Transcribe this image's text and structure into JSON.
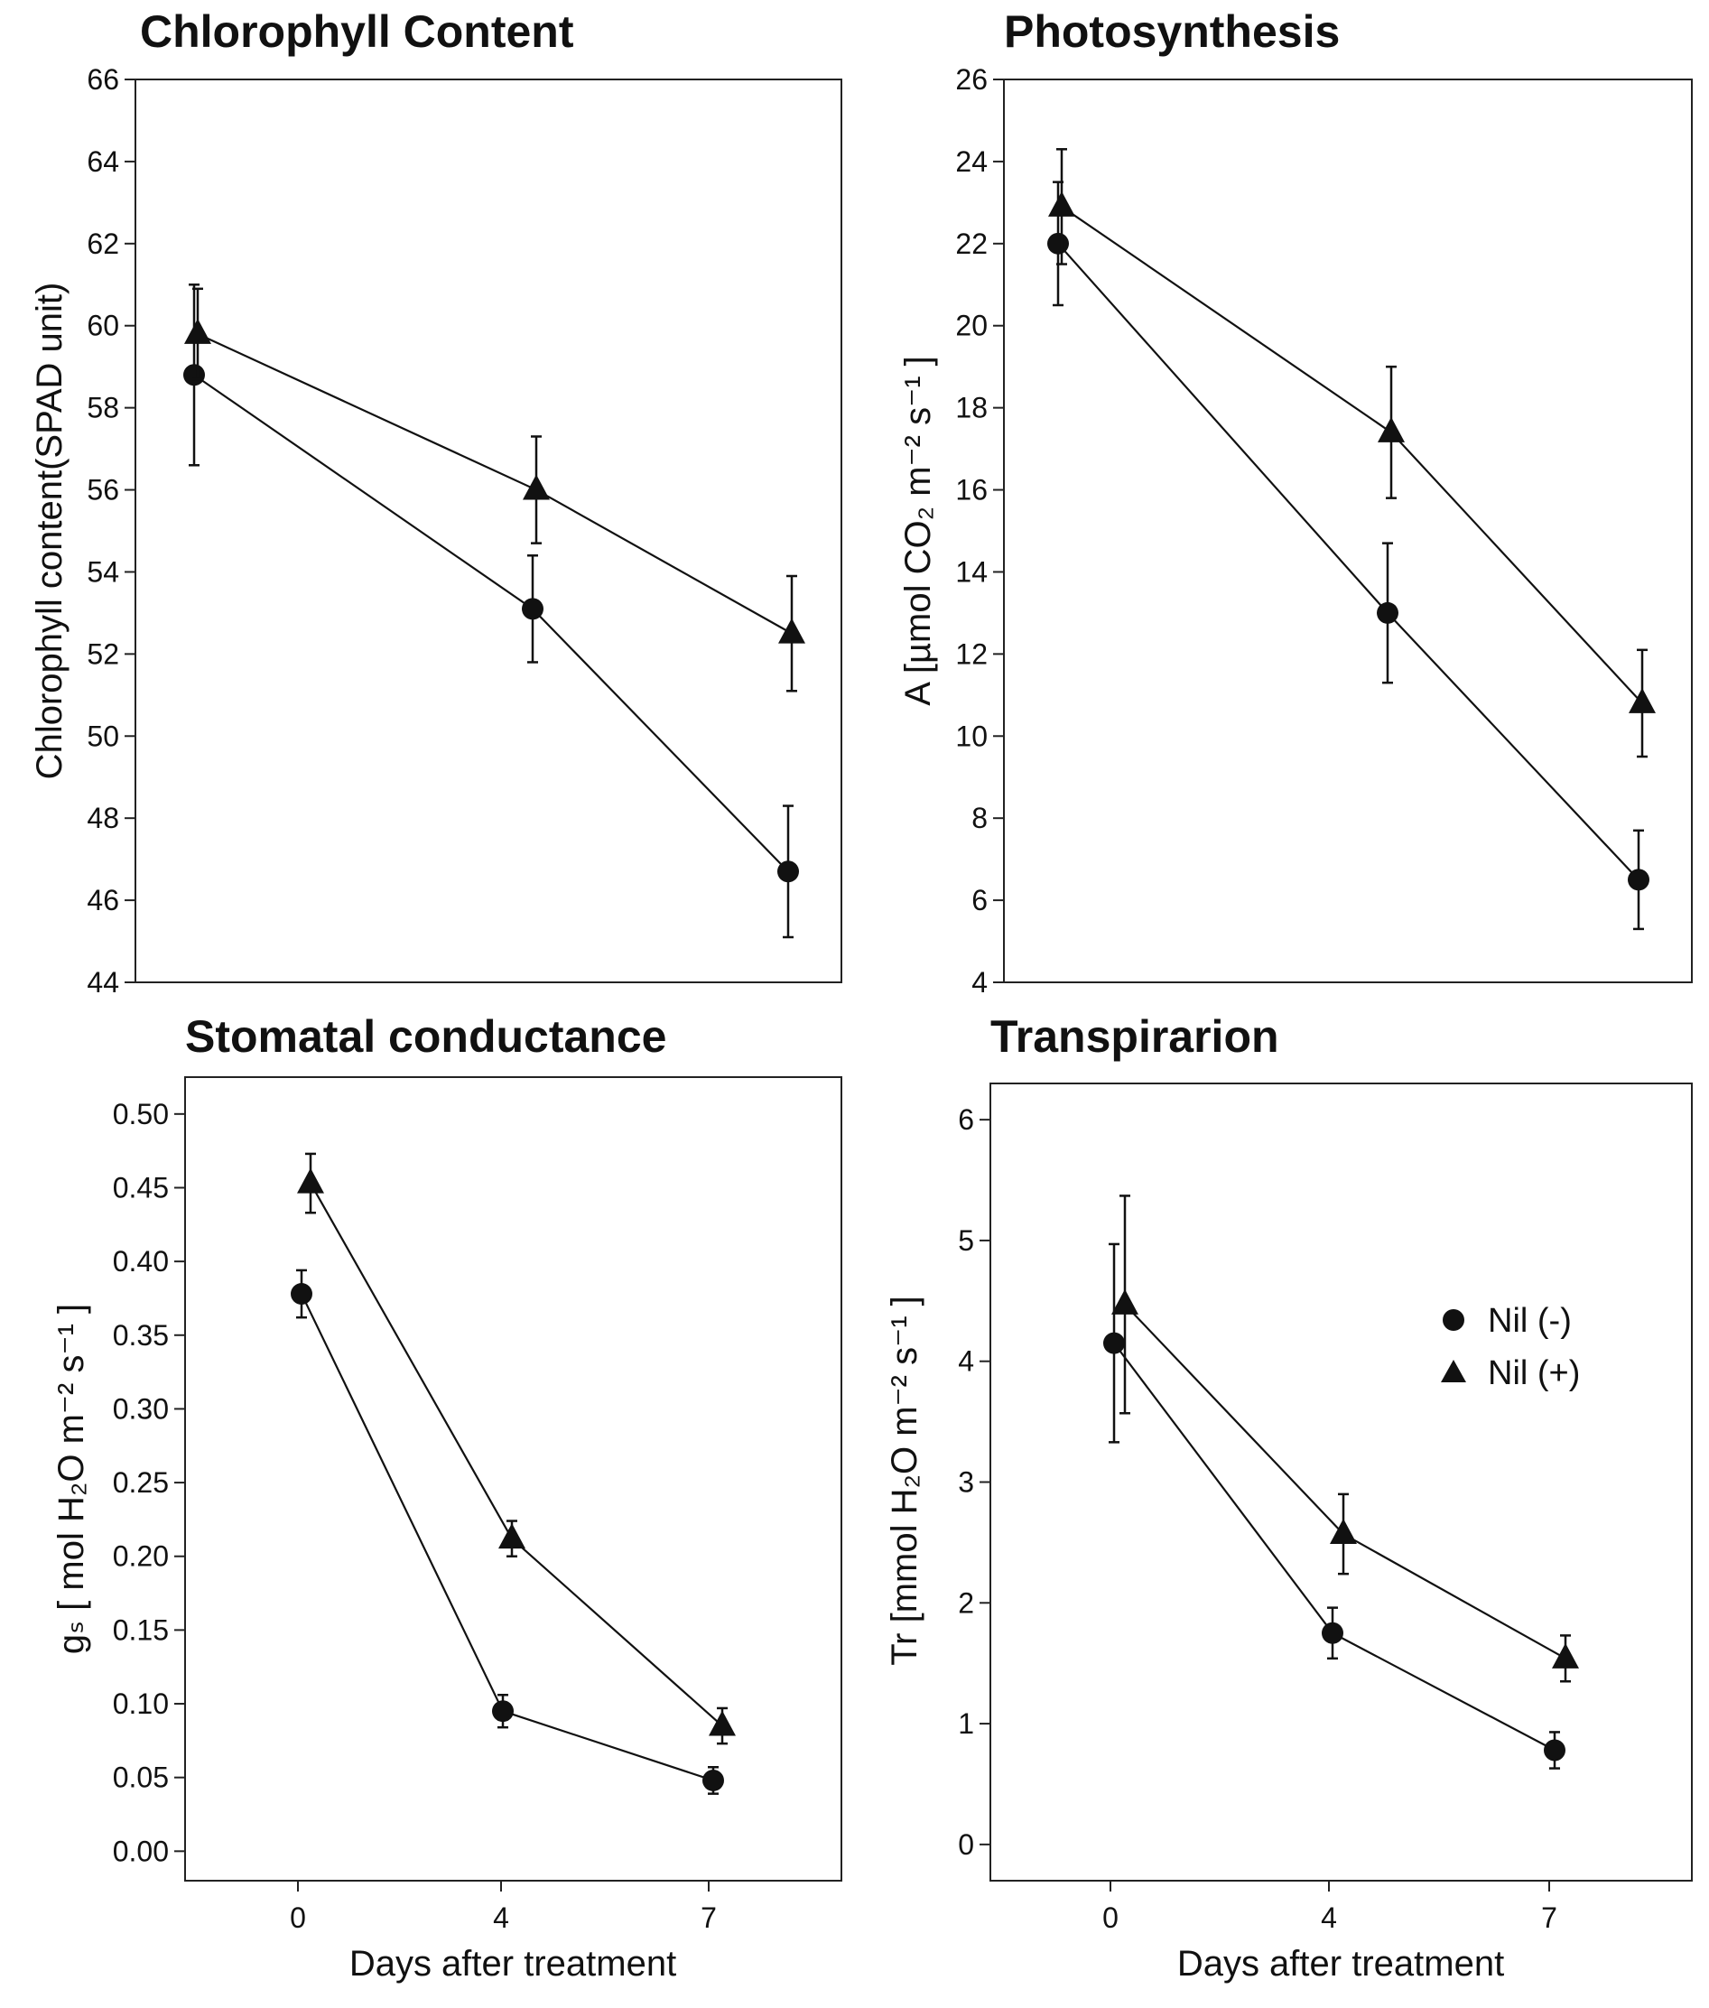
{
  "figure": {
    "legend": {
      "placement": "inside right of Transpirarion panel",
      "entries": [
        {
          "label": "Nil (-)",
          "marker": "circle"
        },
        {
          "label": "Nil (+)",
          "marker": "triangle"
        }
      ]
    }
  },
  "chart_data": [
    {
      "type": "line",
      "title": "Chlorophyll Content",
      "xlabel": "",
      "ylabel": "Chlorophyll content(SPAD unit)",
      "ylim": [
        44,
        66
      ],
      "yticks": [
        "44",
        "46",
        "48",
        "50",
        "52",
        "54",
        "56",
        "58",
        "60",
        "62",
        "64",
        "66"
      ],
      "xticks": [],
      "x": [
        0,
        4,
        7
      ],
      "grid": false,
      "series": [
        {
          "name": "Nil (-)",
          "marker": "circle",
          "values": [
            58.8,
            53.1,
            46.7
          ],
          "errors": [
            2.2,
            1.3,
            1.6
          ]
        },
        {
          "name": "Nil (+)",
          "marker": "triangle",
          "values": [
            59.8,
            56.0,
            52.5
          ],
          "errors": [
            1.1,
            1.3,
            1.4
          ]
        }
      ]
    },
    {
      "type": "line",
      "title": "Photosynthesis",
      "xlabel": "",
      "ylabel": "A [µmol CO₂ m⁻² s⁻¹ ]",
      "ylim": [
        4,
        26
      ],
      "yticks": [
        "4",
        "6",
        "8",
        "10",
        "12",
        "14",
        "16",
        "18",
        "20",
        "22",
        "24",
        "26"
      ],
      "xticks": [],
      "x": [
        0,
        4,
        7
      ],
      "grid": false,
      "series": [
        {
          "name": "Nil (-)",
          "marker": "circle",
          "values": [
            22.0,
            13.0,
            6.5
          ],
          "errors": [
            1.5,
            1.7,
            1.2
          ]
        },
        {
          "name": "Nil (+)",
          "marker": "triangle",
          "values": [
            22.9,
            17.4,
            10.8
          ],
          "errors": [
            1.4,
            1.6,
            1.3
          ]
        }
      ]
    },
    {
      "type": "line",
      "title": "Stomatal conductance",
      "xlabel": "Days after treatment",
      "ylabel": "gₛ [   mol H₂O m⁻² s⁻¹ ]",
      "ylim": [
        -0.02,
        0.525
      ],
      "yticks": [
        "0.00",
        "0.05",
        "0.10",
        "0.15",
        "0.20",
        "0.25",
        "0.30",
        "0.35",
        "0.40",
        "0.45",
        "0.50"
      ],
      "xticks": [
        "0",
        "4",
        "7"
      ],
      "x": [
        0,
        4,
        7
      ],
      "grid": false,
      "series": [
        {
          "name": "Nil (-)",
          "marker": "circle",
          "values": [
            0.378,
            0.095,
            0.048
          ],
          "errors": [
            0.016,
            0.011,
            0.009
          ]
        },
        {
          "name": "Nil (+)",
          "marker": "triangle",
          "values": [
            0.453,
            0.212,
            0.085
          ],
          "errors": [
            0.02,
            0.012,
            0.012
          ]
        }
      ]
    },
    {
      "type": "line",
      "title": "Transpirarion",
      "xlabel": "Days after treatment",
      "ylabel": "Tr [mmol H₂O m⁻² s⁻¹ ]",
      "ylim": [
        -0.3,
        6.3
      ],
      "yticks": [
        "0",
        "1",
        "2",
        "3",
        "4",
        "5",
        "6"
      ],
      "xticks": [
        "0",
        "4",
        "7"
      ],
      "x": [
        0,
        4,
        7
      ],
      "grid": false,
      "series": [
        {
          "name": "Nil (-)",
          "marker": "circle",
          "values": [
            4.15,
            1.75,
            0.78
          ],
          "errors": [
            0.82,
            0.21,
            0.15
          ]
        },
        {
          "name": "Nil (+)",
          "marker": "triangle",
          "values": [
            4.47,
            2.57,
            1.54
          ],
          "errors": [
            0.9,
            0.33,
            0.19
          ]
        }
      ]
    }
  ]
}
